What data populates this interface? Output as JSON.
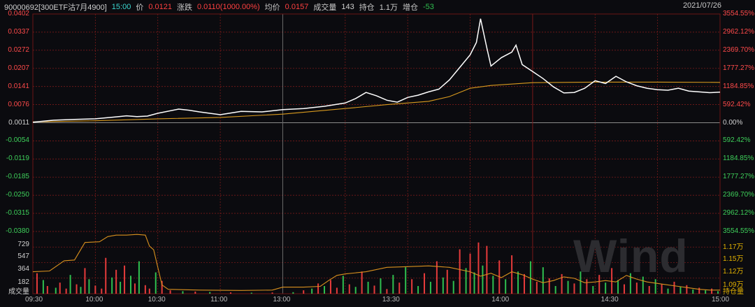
{
  "header": {
    "code": "90000692[300ETF沽7月4900]",
    "time": "15:00",
    "price_label": "价",
    "price": "0.0121",
    "change_label": "涨跌",
    "change": "0.0110(1000.00%)",
    "avg_label": "均价",
    "avg": "0.0157",
    "volume_label": "成交量",
    "volume": "143",
    "oi_label": "持仓",
    "oi": "1.1万",
    "oi_change_label": "增仓",
    "oi_change": "-53",
    "date": "2021/07/26"
  },
  "price_axis": {
    "left": [
      "0.0402",
      "0.0337",
      "0.0272",
      "0.0207",
      "0.0141",
      "0.0076",
      "0.0011",
      "-0.0054",
      "-0.0119",
      "-0.0185",
      "-0.0250",
      "-0.0315",
      "-0.0380"
    ],
    "right": [
      "3554.55%",
      "2962.12%",
      "2369.70%",
      "1777.27%",
      "1184.85%",
      "592.42%",
      "0.00%",
      "592.42%",
      "1184.85%",
      "1777.27%",
      "2369.70%",
      "2962.12%",
      "3554.55%"
    ]
  },
  "volume_axis": {
    "left": [
      "729",
      "547",
      "364",
      "182",
      "成交量"
    ],
    "right": [
      "1.17万",
      "1.15万",
      "1.12万",
      "1.09万",
      "持仓量"
    ]
  },
  "time_axis": [
    "09:30",
    "10:00",
    "10:30",
    "11:00",
    "13:00",
    "13:30",
    "14:00",
    "14:30",
    "15:00"
  ],
  "watermark": "Wind",
  "colors": {
    "up": "#e63b3b",
    "down": "#2fbf4f",
    "price_line": "#ffffff",
    "avg_line": "#d99a1e",
    "oi_line": "#d9901e",
    "grid": "#7a1a1a"
  },
  "chart_data": [
    {
      "type": "line",
      "name": "intraday-price",
      "x_range": [
        "09:30",
        "15:00"
      ],
      "ylim": [
        -0.038,
        0.0402
      ],
      "series": [
        {
          "name": "价",
          "points": [
            [
              0,
              0.0013
            ],
            [
              10,
              0.002
            ],
            [
              20,
              0.0023
            ],
            [
              30,
              0.0025
            ],
            [
              40,
              0.0032
            ],
            [
              45,
              0.0036
            ],
            [
              50,
              0.0033
            ],
            [
              55,
              0.0035
            ],
            [
              60,
              0.0045
            ],
            [
              70,
              0.006
            ],
            [
              75,
              0.0056
            ],
            [
              80,
              0.005
            ],
            [
              90,
              0.004
            ],
            [
              95,
              0.0046
            ],
            [
              100,
              0.0052
            ],
            [
              110,
              0.005
            ],
            [
              120,
              0.0058
            ],
            [
              130,
              0.0062
            ],
            [
              140,
              0.007
            ],
            [
              150,
              0.0082
            ],
            [
              155,
              0.0098
            ],
            [
              160,
              0.012
            ],
            [
              165,
              0.0108
            ],
            [
              170,
              0.0092
            ],
            [
              175,
              0.0085
            ],
            [
              180,
              0.0102
            ],
            [
              185,
              0.011
            ],
            [
              190,
              0.0122
            ],
            [
              195,
              0.0132
            ],
            [
              200,
              0.0165
            ],
            [
              205,
              0.021
            ],
            [
              210,
              0.0255
            ],
            [
              213,
              0.03
            ],
            [
              215,
              0.0385
            ],
            [
              218,
              0.028
            ],
            [
              220,
              0.0215
            ],
            [
              225,
              0.0245
            ],
            [
              230,
              0.0265
            ],
            [
              232,
              0.029
            ],
            [
              235,
              0.022
            ],
            [
              240,
              0.0195
            ],
            [
              245,
              0.017
            ],
            [
              250,
              0.014
            ],
            [
              255,
              0.0118
            ],
            [
              260,
              0.012
            ],
            [
              265,
              0.0135
            ],
            [
              270,
              0.0162
            ],
            [
              275,
              0.0152
            ],
            [
              280,
              0.0178
            ],
            [
              285,
              0.0158
            ],
            [
              290,
              0.0144
            ],
            [
              295,
              0.0135
            ],
            [
              300,
              0.013
            ],
            [
              305,
              0.0128
            ],
            [
              310,
              0.0135
            ],
            [
              315,
              0.0125
            ],
            [
              320,
              0.0122
            ],
            [
              325,
              0.0119
            ],
            [
              330,
              0.0121
            ]
          ]
        },
        {
          "name": "均价",
          "points": [
            [
              0,
              0.0014
            ],
            [
              30,
              0.0018
            ],
            [
              60,
              0.0025
            ],
            [
              90,
              0.003
            ],
            [
              120,
              0.0042
            ],
            [
              150,
              0.0062
            ],
            [
              170,
              0.0076
            ],
            [
              190,
              0.0088
            ],
            [
              200,
              0.0105
            ],
            [
              210,
              0.0135
            ],
            [
              220,
              0.0145
            ],
            [
              240,
              0.0155
            ],
            [
              270,
              0.0157
            ],
            [
              300,
              0.0157
            ],
            [
              330,
              0.0156
            ]
          ]
        }
      ]
    },
    {
      "type": "bar",
      "name": "volume-and-open-interest",
      "ylim": [
        0,
        729
      ],
      "open_interest_ylim": [
        10900,
        11750
      ],
      "volume": [
        [
          2,
          240,
          1
        ],
        [
          5,
          160,
          0
        ],
        [
          7,
          90,
          1
        ],
        [
          11,
          70,
          0
        ],
        [
          13,
          130,
          1
        ],
        [
          16,
          60,
          1
        ],
        [
          18,
          220,
          0
        ],
        [
          21,
          110,
          1
        ],
        [
          23,
          80,
          0
        ],
        [
          25,
          300,
          1
        ],
        [
          27,
          170,
          0
        ],
        [
          30,
          95,
          1
        ],
        [
          33,
          60,
          1
        ],
        [
          35,
          420,
          1
        ],
        [
          38,
          190,
          0
        ],
        [
          40,
          280,
          1
        ],
        [
          42,
          140,
          0
        ],
        [
          44,
          330,
          1
        ],
        [
          47,
          210,
          0
        ],
        [
          49,
          120,
          1
        ],
        [
          51,
          380,
          0
        ],
        [
          54,
          100,
          1
        ],
        [
          56,
          60,
          1
        ],
        [
          59,
          250,
          0
        ],
        [
          62,
          150,
          1
        ],
        [
          66,
          40,
          1
        ],
        [
          72,
          30,
          0
        ],
        [
          78,
          25,
          1
        ],
        [
          85,
          20,
          0
        ],
        [
          95,
          15,
          1
        ],
        [
          105,
          12,
          0
        ],
        [
          115,
          14,
          1
        ],
        [
          125,
          18,
          0
        ],
        [
          130,
          40,
          1
        ],
        [
          134,
          60,
          0
        ],
        [
          137,
          120,
          1
        ],
        [
          140,
          90,
          0
        ],
        [
          143,
          160,
          1
        ],
        [
          146,
          70,
          1
        ],
        [
          149,
          210,
          0
        ],
        [
          152,
          110,
          1
        ],
        [
          155,
          80,
          0
        ],
        [
          158,
          260,
          1
        ],
        [
          161,
          140,
          0
        ],
        [
          164,
          95,
          1
        ],
        [
          167,
          180,
          0
        ],
        [
          170,
          55,
          1
        ],
        [
          173,
          220,
          0
        ],
        [
          176,
          130,
          1
        ],
        [
          179,
          310,
          0
        ],
        [
          182,
          170,
          1
        ],
        [
          185,
          90,
          0
        ],
        [
          188,
          240,
          1
        ],
        [
          191,
          140,
          0
        ],
        [
          194,
          380,
          1
        ],
        [
          197,
          190,
          0
        ],
        [
          199,
          280,
          1
        ],
        [
          202,
          150,
          0
        ],
        [
          205,
          520,
          1
        ],
        [
          208,
          300,
          0
        ],
        [
          210,
          470,
          1
        ],
        [
          212,
          250,
          0
        ],
        [
          214,
          600,
          1
        ],
        [
          216,
          330,
          0
        ],
        [
          218,
          560,
          1
        ],
        [
          221,
          210,
          0
        ],
        [
          224,
          390,
          1
        ],
        [
          227,
          170,
          0
        ],
        [
          230,
          450,
          1
        ],
        [
          233,
          260,
          0
        ],
        [
          236,
          230,
          1
        ],
        [
          239,
          380,
          0
        ],
        [
          242,
          140,
          1
        ],
        [
          245,
          310,
          0
        ],
        [
          248,
          180,
          1
        ],
        [
          251,
          90,
          0
        ],
        [
          254,
          230,
          1
        ],
        [
          257,
          150,
          0
        ],
        [
          260,
          120,
          1
        ],
        [
          263,
          260,
          0
        ],
        [
          266,
          170,
          1
        ],
        [
          269,
          90,
          0
        ],
        [
          272,
          220,
          1
        ],
        [
          275,
          130,
          0
        ],
        [
          278,
          300,
          1
        ],
        [
          281,
          160,
          0
        ],
        [
          284,
          110,
          1
        ],
        [
          287,
          240,
          0
        ],
        [
          290,
          130,
          1
        ],
        [
          293,
          200,
          0
        ],
        [
          296,
          90,
          1
        ],
        [
          299,
          170,
          0
        ],
        [
          302,
          110,
          1
        ],
        [
          305,
          60,
          0
        ],
        [
          308,
          140,
          1
        ],
        [
          311,
          80,
          0
        ],
        [
          314,
          100,
          1
        ],
        [
          317,
          50,
          0
        ],
        [
          320,
          70,
          1
        ],
        [
          323,
          40,
          0
        ],
        [
          326,
          60,
          1
        ],
        [
          329,
          30,
          0
        ]
      ],
      "open_interest": [
        [
          0,
          11200
        ],
        [
          8,
          11210
        ],
        [
          15,
          11350
        ],
        [
          20,
          11360
        ],
        [
          25,
          11600
        ],
        [
          32,
          11610
        ],
        [
          36,
          11680
        ],
        [
          40,
          11700
        ],
        [
          45,
          11700
        ],
        [
          50,
          11710
        ],
        [
          54,
          11700
        ],
        [
          56,
          11550
        ],
        [
          58,
          11500
        ],
        [
          62,
          11020
        ],
        [
          65,
          10960
        ],
        [
          80,
          10950
        ],
        [
          100,
          10945
        ],
        [
          115,
          10950
        ],
        [
          120,
          10990
        ],
        [
          130,
          10990
        ],
        [
          138,
          11000
        ],
        [
          142,
          11080
        ],
        [
          146,
          11150
        ],
        [
          150,
          11170
        ],
        [
          160,
          11200
        ],
        [
          170,
          11260
        ],
        [
          180,
          11270
        ],
        [
          190,
          11280
        ],
        [
          200,
          11260
        ],
        [
          210,
          11200
        ],
        [
          215,
          11140
        ],
        [
          220,
          11180
        ],
        [
          225,
          11120
        ],
        [
          230,
          11200
        ],
        [
          235,
          11160
        ],
        [
          240,
          11100
        ],
        [
          245,
          11050
        ],
        [
          250,
          11080
        ],
        [
          255,
          11130
        ],
        [
          260,
          11110
        ],
        [
          265,
          11050
        ],
        [
          270,
          11060
        ],
        [
          275,
          11080
        ],
        [
          280,
          11060
        ],
        [
          285,
          11150
        ],
        [
          290,
          11100
        ],
        [
          295,
          11060
        ],
        [
          300,
          11040
        ],
        [
          305,
          11020
        ],
        [
          310,
          11000
        ],
        [
          315,
          10980
        ],
        [
          320,
          10960
        ],
        [
          325,
          10950
        ],
        [
          330,
          10950
        ]
      ]
    }
  ]
}
